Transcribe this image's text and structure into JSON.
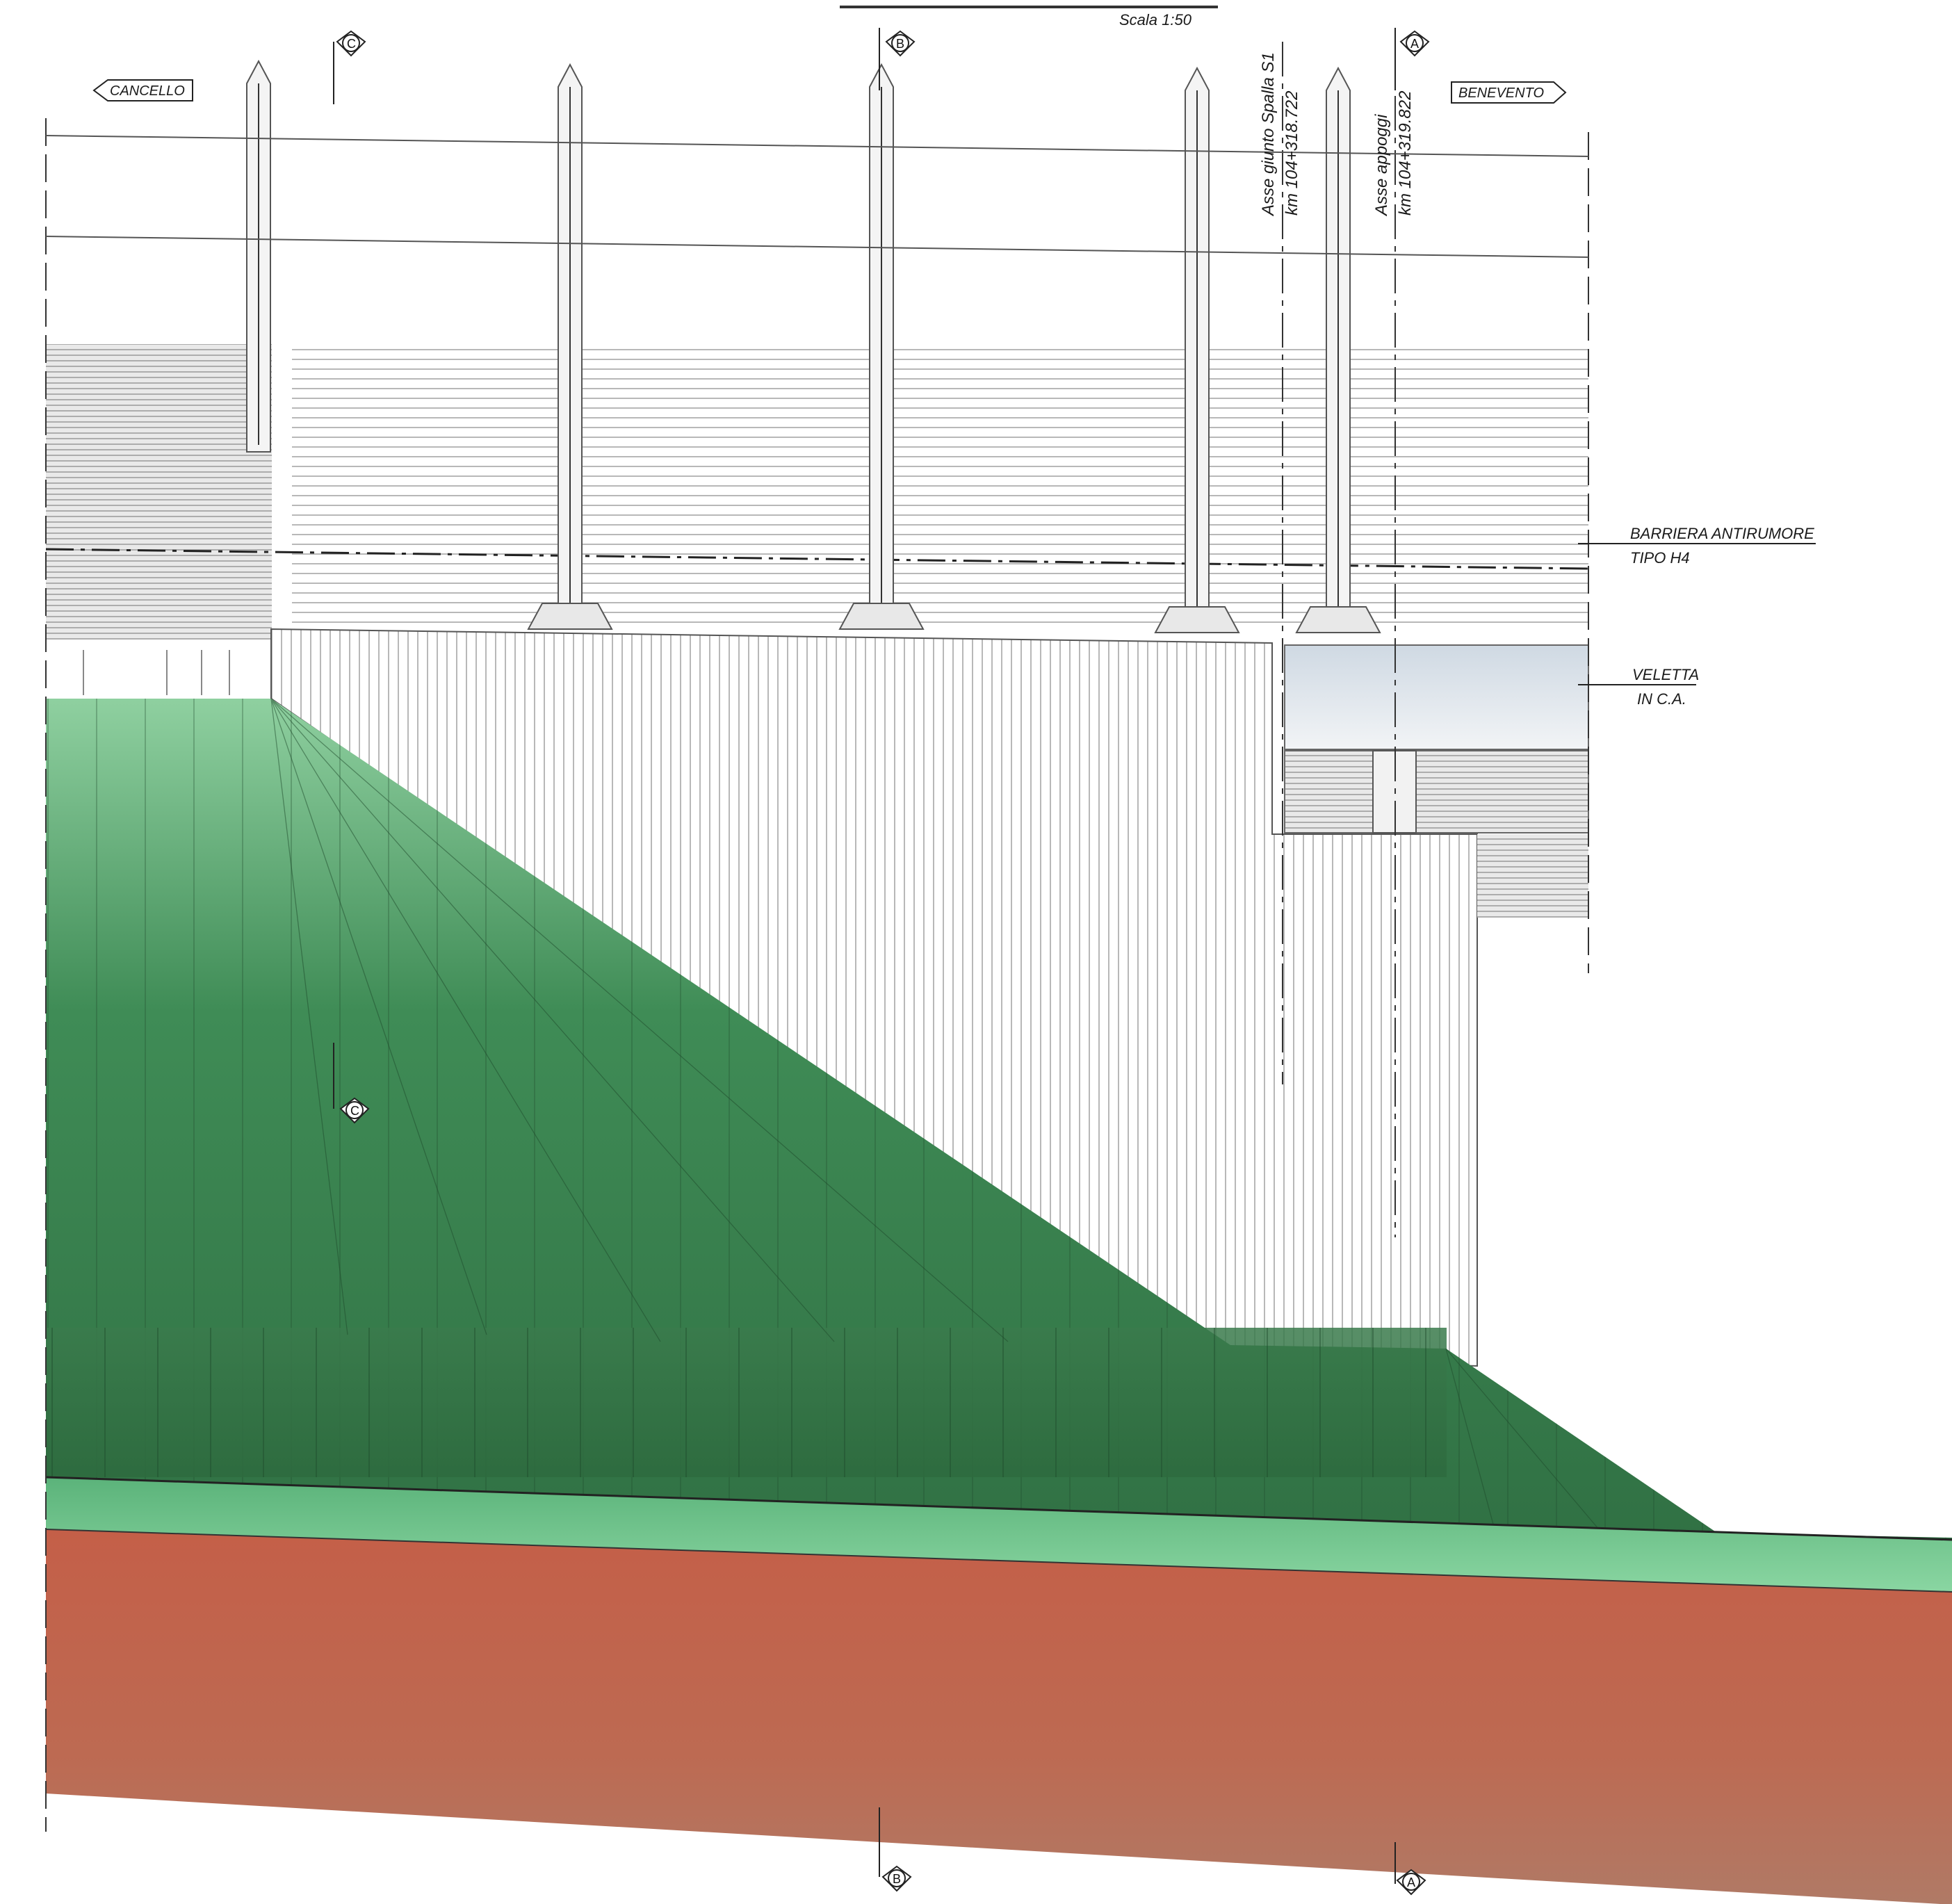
{
  "scale_label": "Scala 1:50",
  "direction_left": "CANCELLO",
  "direction_right": "BENEVENTO",
  "axis_spalla": {
    "line1": "Asse giunto Spalla S1",
    "line2": "km 104+318.722"
  },
  "axis_appoggi": {
    "line1": "Asse appoggi",
    "line2": "km 104+319.822"
  },
  "callout_barriera": {
    "line1": "BARRIERA ANTIRUMORE",
    "line2": "TIPO H4"
  },
  "callout_veletta": {
    "line1": "VELETTA",
    "line2": "IN C.A."
  },
  "section_markers": {
    "A": "A",
    "B": "B",
    "C": "C"
  },
  "colors": {
    "embankment_top": "#8fcf9f",
    "embankment_mid": "#3f8a55",
    "embankment_dark": "#2e6a3f",
    "soil_top": "#c46049",
    "soil_bottom": "#b5765f",
    "topsoil_band": "#6cc487",
    "wall_line": "#666666",
    "veletta_fill": "#dfe6ec"
  }
}
